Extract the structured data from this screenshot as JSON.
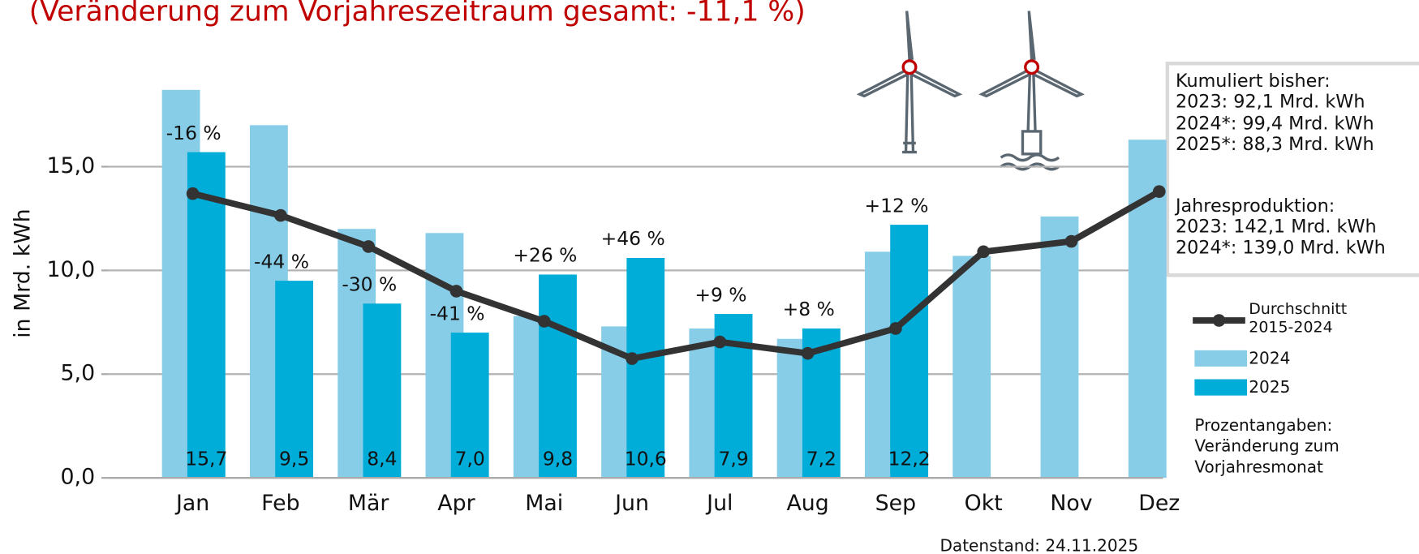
{
  "chart_data": {
    "type": "bar",
    "title": "(Veränderung zum Vorjahreszeitraum gesamt: -11,1 %)",
    "y_label": "in Mrd. kWh",
    "categories": [
      "Jan",
      "Feb",
      "Mär",
      "Apr",
      "Mai",
      "Jun",
      "Jul",
      "Aug",
      "Sep",
      "Okt",
      "Nov",
      "Dez"
    ],
    "series": [
      {
        "name": "Durchschnitt 2015-2024",
        "type": "line",
        "color": "#333333",
        "values": [
          13.7,
          12.65,
          11.15,
          9.0,
          7.55,
          5.75,
          6.55,
          6.0,
          7.2,
          10.9,
          11.4,
          13.8
        ]
      },
      {
        "name": "2024",
        "type": "bar",
        "color": "#87cde8",
        "values": [
          18.7,
          17.0,
          12.0,
          11.8,
          7.8,
          7.3,
          7.2,
          6.7,
          10.9,
          10.7,
          12.6,
          16.3
        ]
      },
      {
        "name": "2025",
        "type": "bar",
        "color": "#00acd8",
        "values": [
          15.7,
          9.5,
          8.4,
          7.0,
          9.8,
          10.6,
          7.9,
          7.2,
          12.2,
          null,
          null,
          null
        ],
        "value_labels": [
          "15,7",
          "9,5",
          "8,4",
          "7,0",
          "9,8",
          "10,6",
          "7,9",
          "7,2",
          "12,2",
          null,
          null,
          null
        ],
        "change_labels": [
          "-16 %",
          "-44 %",
          "-30 %",
          "-41 %",
          "+26 %",
          "+46 %",
          "+9 %",
          "+8 %",
          "+12 %",
          null,
          null,
          null
        ]
      }
    ],
    "ylim": [
      0,
      19
    ],
    "yticks": [
      {
        "value": 0,
        "label": "0,0"
      },
      {
        "value": 5,
        "label": "5,0"
      },
      {
        "value": 10,
        "label": "10,0"
      },
      {
        "value": 15,
        "label": "15,0"
      }
    ],
    "grid": true,
    "info_box": [
      "Kumuliert bisher:",
      "2023:   92,1 Mrd. kWh",
      "2024*: 99,4 Mrd. kWh",
      "2025*: 88,3 Mrd. kWh",
      "Jahresproduktion:",
      "2023:   142,1 Mrd. kWh",
      "2024*: 139,0 Mrd. kWh"
    ],
    "note": [
      "Prozentangaben:",
      "Veränderung zum",
      "Vorjahresmonat"
    ],
    "source": "Datenstand: 24.11.2025"
  }
}
